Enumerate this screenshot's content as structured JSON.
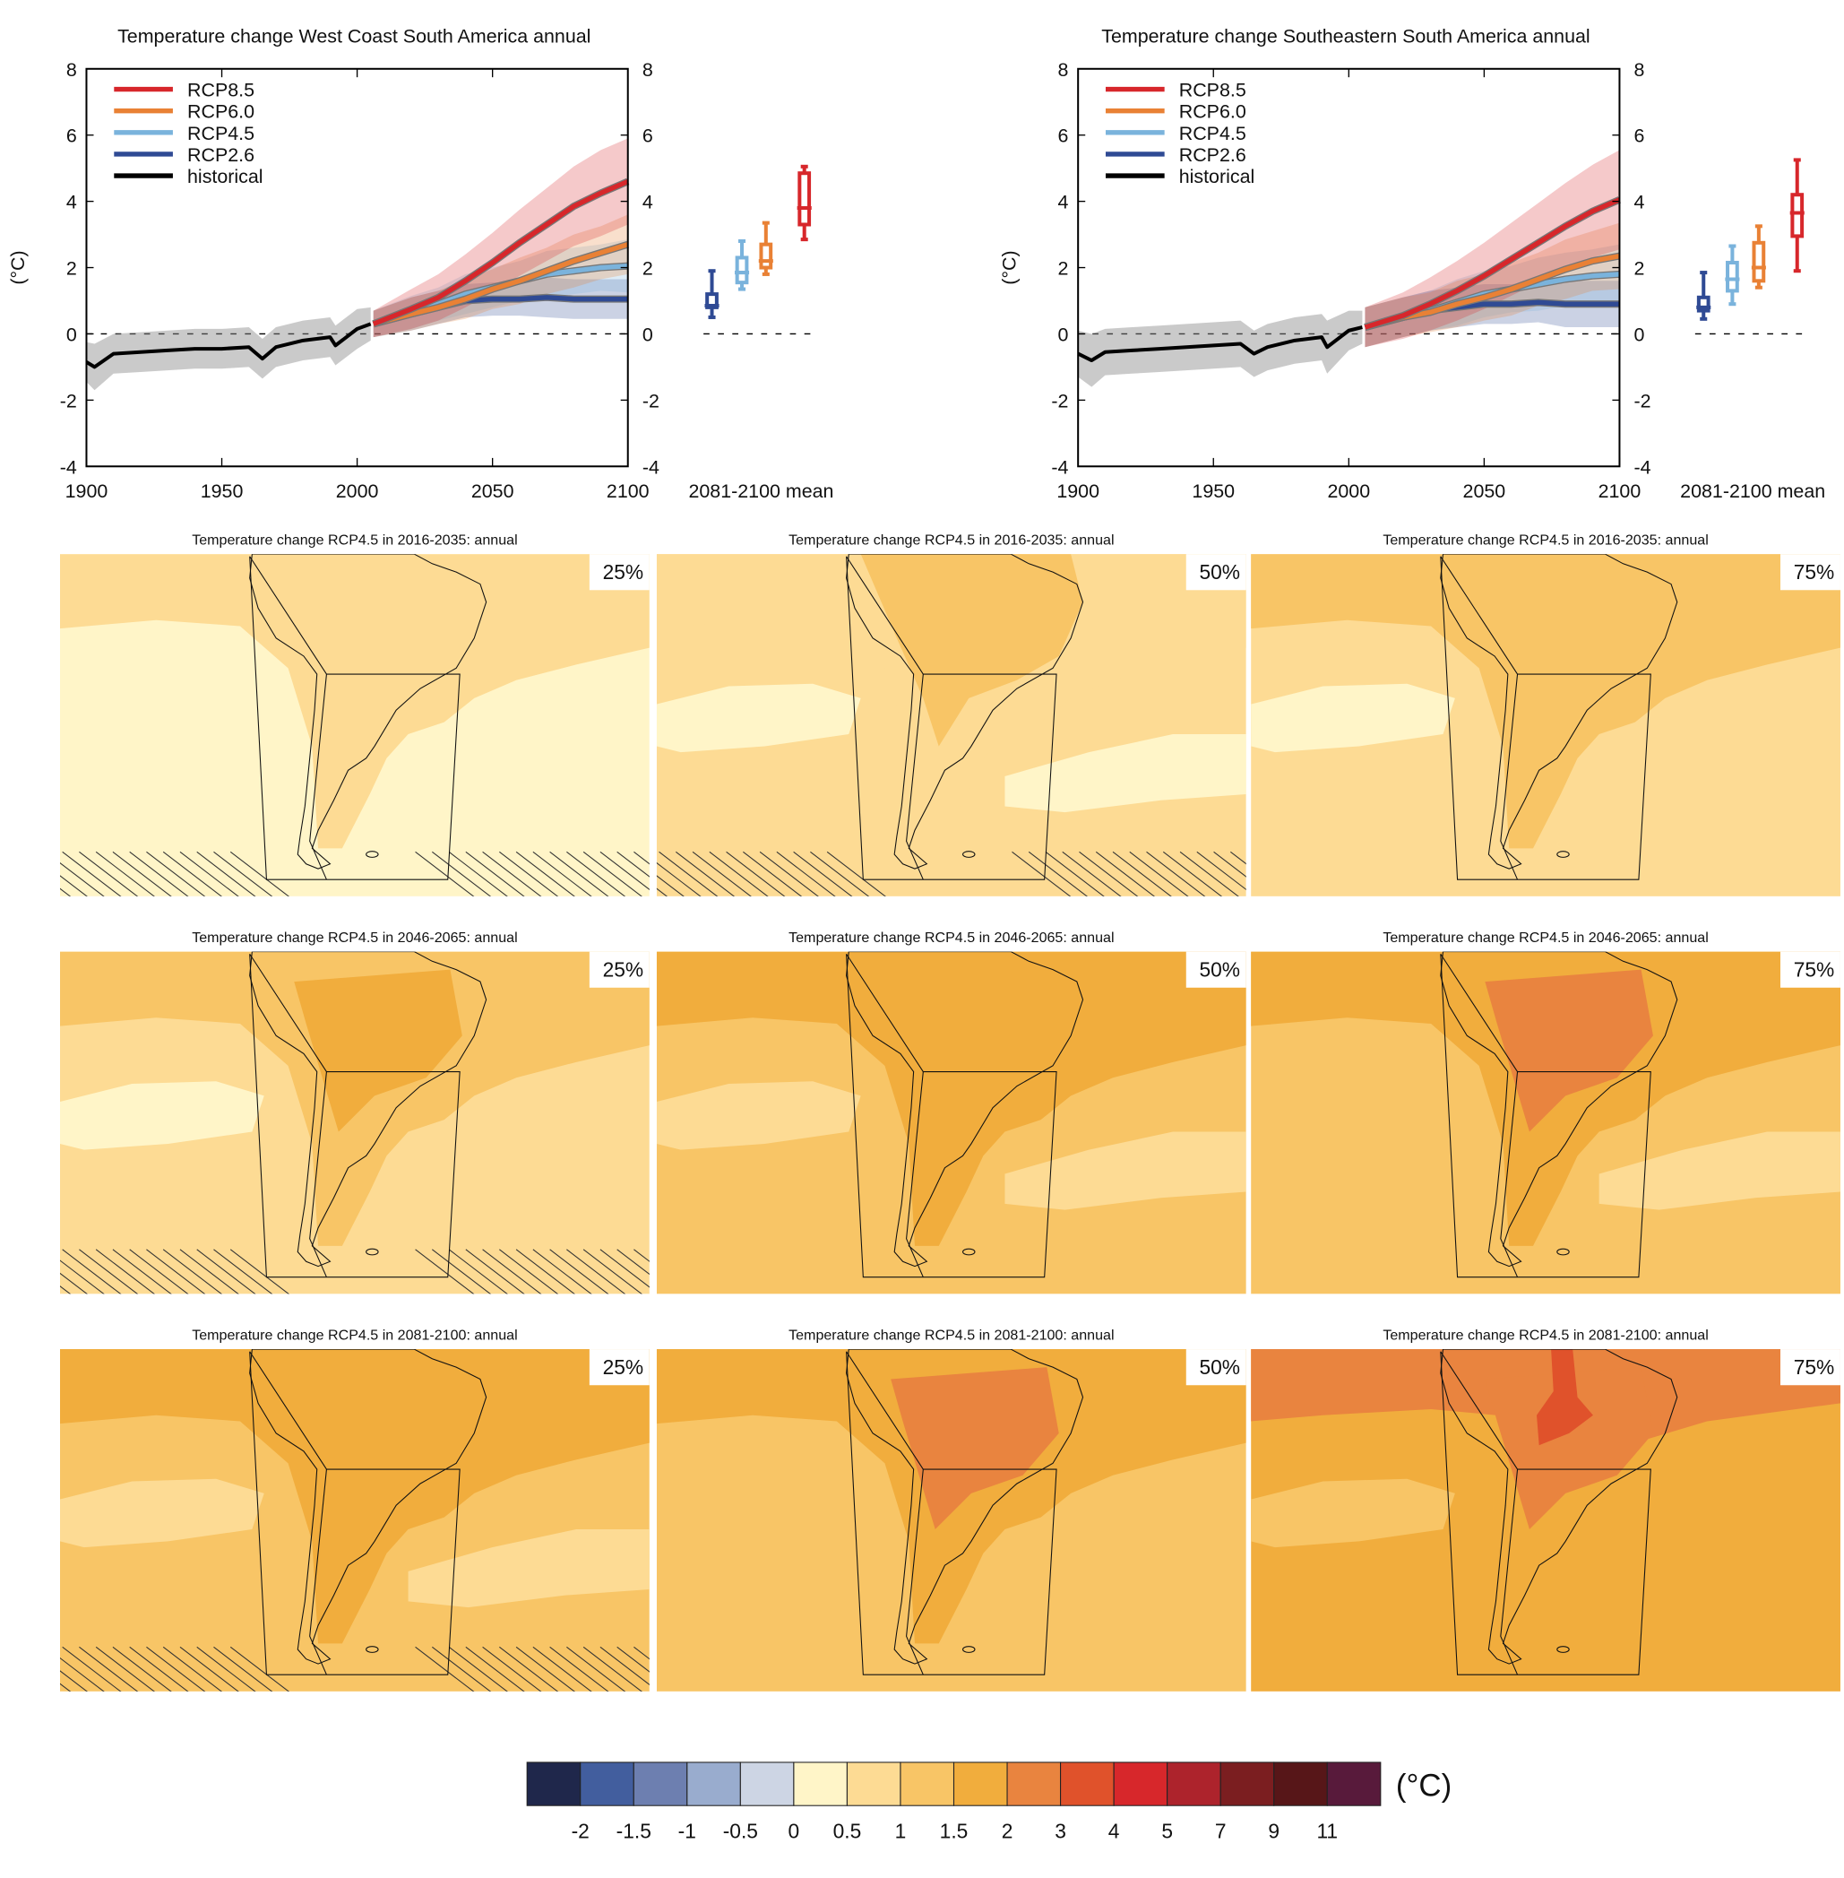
{
  "chart_data": {
    "timeseries": [
      {
        "type": "line",
        "title": "Temperature change West Coast South America annual",
        "ylabel": "(°C)",
        "xlim": [
          1900,
          2100
        ],
        "ylim": [
          -4,
          8
        ],
        "xticks": [
          "1900",
          "1950",
          "2000",
          "2050",
          "2100"
        ],
        "yticks": [
          "-4",
          "-2",
          "0",
          "2",
          "4",
          "6",
          "8"
        ],
        "legend_placement": "top-left",
        "mean_label": "2081-2100 mean",
        "series": [
          {
            "name": "RCP8.5",
            "color": "#d7272b",
            "x": [
              2006,
              2020,
              2030,
              2040,
              2050,
              2060,
              2070,
              2080,
              2090,
              2100
            ],
            "values": [
              0.3,
              0.75,
              1.1,
              1.6,
              2.15,
              2.75,
              3.3,
              3.85,
              4.25,
              4.6
            ],
            "spread": [
              0.4,
              0.6,
              0.7,
              0.8,
              0.9,
              1.0,
              1.1,
              1.2,
              1.3,
              1.3
            ]
          },
          {
            "name": "RCP6.0",
            "color": "#e98135",
            "x": [
              2006,
              2020,
              2030,
              2040,
              2050,
              2060,
              2070,
              2080,
              2090,
              2100
            ],
            "values": [
              0.3,
              0.6,
              0.8,
              1.05,
              1.35,
              1.6,
              1.9,
              2.2,
              2.45,
              2.7
            ],
            "spread": [
              0.4,
              0.5,
              0.5,
              0.6,
              0.6,
              0.7,
              0.7,
              0.8,
              0.8,
              0.9
            ]
          },
          {
            "name": "RCP4.5",
            "color": "#7ab3dc",
            "x": [
              2006,
              2020,
              2030,
              2040,
              2050,
              2060,
              2070,
              2080,
              2090,
              2100
            ],
            "values": [
              0.3,
              0.65,
              0.9,
              1.2,
              1.4,
              1.6,
              1.8,
              1.9,
              2.0,
              2.05
            ],
            "spread": [
              0.4,
              0.5,
              0.5,
              0.6,
              0.6,
              0.6,
              0.7,
              0.7,
              0.7,
              0.8
            ]
          },
          {
            "name": "RCP2.6",
            "color": "#2f4a94",
            "x": [
              2006,
              2020,
              2030,
              2040,
              2050,
              2060,
              2070,
              2080,
              2090,
              2100
            ],
            "values": [
              0.3,
              0.6,
              0.8,
              1.0,
              1.05,
              1.05,
              1.1,
              1.05,
              1.05,
              1.05
            ],
            "spread": [
              0.4,
              0.5,
              0.5,
              0.5,
              0.5,
              0.5,
              0.6,
              0.6,
              0.6,
              0.6
            ]
          },
          {
            "name": "historical",
            "color": "#000000",
            "x": [
              1900,
              1903,
              1910,
              1920,
              1930,
              1940,
              1950,
              1960,
              1965,
              1970,
              1980,
              1990,
              1992,
              2000,
              2005
            ],
            "values": [
              -0.85,
              -1.0,
              -0.6,
              -0.55,
              -0.5,
              -0.45,
              -0.45,
              -0.4,
              -0.75,
              -0.4,
              -0.2,
              -0.1,
              -0.35,
              0.15,
              0.3
            ],
            "spread": [
              0.6,
              0.7,
              0.6,
              0.6,
              0.6,
              0.6,
              0.6,
              0.6,
              0.6,
              0.6,
              0.6,
              0.6,
              0.6,
              0.6,
              0.5
            ]
          }
        ],
        "boxplots_2081_2100": [
          {
            "name": "RCP2.6",
            "color": "#2f4a94",
            "min": 0.5,
            "q1": 0.8,
            "median": 0.85,
            "q3": 1.2,
            "max": 1.9
          },
          {
            "name": "RCP4.5",
            "color": "#7ab3dc",
            "min": 1.35,
            "q1": 1.55,
            "median": 1.85,
            "q3": 2.3,
            "max": 2.8
          },
          {
            "name": "RCP6.0",
            "color": "#e98135",
            "min": 1.8,
            "q1": 2.0,
            "median": 2.2,
            "q3": 2.7,
            "max": 3.35
          },
          {
            "name": "RCP8.5",
            "color": "#d7272b",
            "min": 2.85,
            "q1": 3.3,
            "median": 3.8,
            "q3": 4.85,
            "max": 5.05
          }
        ]
      },
      {
        "type": "line",
        "title": "Temperature change Southeastern South America annual",
        "ylabel": "(°C)",
        "xlim": [
          1900,
          2100
        ],
        "ylim": [
          -4,
          8
        ],
        "xticks": [
          "1900",
          "1950",
          "2000",
          "2050",
          "2100"
        ],
        "yticks": [
          "-4",
          "-2",
          "0",
          "2",
          "4",
          "6",
          "8"
        ],
        "legend_placement": "top-left",
        "mean_label": "2081-2100 mean",
        "series": [
          {
            "name": "RCP8.5",
            "color": "#d7272b",
            "x": [
              2006,
              2020,
              2030,
              2040,
              2050,
              2060,
              2070,
              2080,
              2090,
              2100
            ],
            "values": [
              0.2,
              0.55,
              0.9,
              1.3,
              1.75,
              2.25,
              2.75,
              3.25,
              3.7,
              4.05
            ],
            "spread": [
              0.6,
              0.7,
              0.8,
              0.9,
              1.0,
              1.1,
              1.2,
              1.3,
              1.4,
              1.5
            ]
          },
          {
            "name": "RCP6.0",
            "color": "#e98135",
            "x": [
              2006,
              2020,
              2030,
              2040,
              2050,
              2060,
              2070,
              2080,
              2090,
              2100
            ],
            "values": [
              0.2,
              0.5,
              0.65,
              0.9,
              1.1,
              1.35,
              1.65,
              1.95,
              2.2,
              2.35
            ],
            "spread": [
              0.6,
              0.6,
              0.6,
              0.7,
              0.7,
              0.8,
              0.8,
              0.9,
              0.9,
              1.0
            ]
          },
          {
            "name": "RCP4.5",
            "color": "#7ab3dc",
            "x": [
              2006,
              2020,
              2030,
              2040,
              2050,
              2060,
              2070,
              2080,
              2090,
              2100
            ],
            "values": [
              0.2,
              0.5,
              0.7,
              0.95,
              1.2,
              1.35,
              1.5,
              1.65,
              1.75,
              1.8
            ],
            "spread": [
              0.6,
              0.6,
              0.6,
              0.7,
              0.7,
              0.7,
              0.8,
              0.8,
              0.8,
              0.9
            ]
          },
          {
            "name": "RCP2.6",
            "color": "#2f4a94",
            "x": [
              2006,
              2020,
              2030,
              2040,
              2050,
              2060,
              2070,
              2080,
              2090,
              2100
            ],
            "values": [
              0.2,
              0.5,
              0.7,
              0.8,
              0.9,
              0.9,
              0.95,
              0.9,
              0.9,
              0.9
            ],
            "spread": [
              0.6,
              0.6,
              0.6,
              0.6,
              0.6,
              0.6,
              0.6,
              0.7,
              0.7,
              0.7
            ]
          },
          {
            "name": "historical",
            "color": "#000000",
            "x": [
              1900,
              1905,
              1910,
              1920,
              1930,
              1940,
              1950,
              1960,
              1965,
              1970,
              1980,
              1990,
              1992,
              2000,
              2005
            ],
            "values": [
              -0.6,
              -0.8,
              -0.55,
              -0.5,
              -0.45,
              -0.4,
              -0.35,
              -0.3,
              -0.6,
              -0.4,
              -0.2,
              -0.1,
              -0.4,
              0.1,
              0.2
            ],
            "spread": [
              0.7,
              0.8,
              0.7,
              0.7,
              0.7,
              0.7,
              0.7,
              0.7,
              0.7,
              0.7,
              0.7,
              0.7,
              0.8,
              0.6,
              0.5
            ]
          }
        ],
        "boxplots_2081_2100": [
          {
            "name": "RCP2.6",
            "color": "#2f4a94",
            "min": 0.45,
            "q1": 0.7,
            "median": 0.8,
            "q3": 1.1,
            "max": 1.85
          },
          {
            "name": "RCP4.5",
            "color": "#7ab3dc",
            "min": 0.9,
            "q1": 1.3,
            "median": 1.65,
            "q3": 2.15,
            "max": 2.65
          },
          {
            "name": "RCP6.0",
            "color": "#e98135",
            "min": 1.4,
            "q1": 1.6,
            "median": 2.0,
            "q3": 2.75,
            "max": 3.25
          },
          {
            "name": "RCP8.5",
            "color": "#d7272b",
            "min": 1.9,
            "q1": 2.95,
            "median": 3.65,
            "q3": 4.2,
            "max": 5.25
          }
        ]
      }
    ],
    "maps": {
      "type": "heatmap",
      "panels": [
        {
          "title": "Temperature change RCP4.5 in 2016-2035: annual",
          "percentile": "25%",
          "background_bin": 5,
          "zones": [
            [
              "north",
              6
            ]
          ],
          "hatched": true
        },
        {
          "title": "Temperature change RCP4.5 in 2016-2035: annual",
          "percentile": "50%",
          "background_bin": 6,
          "zones": [
            [
              "paleBandW",
              5
            ],
            [
              "paleBandE",
              5
            ],
            [
              "north",
              6
            ],
            [
              "amazon",
              7
            ]
          ],
          "hatched": true
        },
        {
          "title": "Temperature change RCP4.5 in 2016-2035: annual",
          "percentile": "75%",
          "background_bin": 6,
          "zones": [
            [
              "paleBandW",
              5
            ],
            [
              "north",
              7
            ]
          ],
          "hatched": false
        },
        {
          "title": "Temperature change RCP4.5 in 2046-2065: annual",
          "percentile": "25%",
          "background_bin": 6,
          "zones": [
            [
              "paleBandW",
              5
            ],
            [
              "north",
              7
            ],
            [
              "core",
              8
            ]
          ],
          "hatched": true
        },
        {
          "title": "Temperature change RCP4.5 in 2046-2065: annual",
          "percentile": "50%",
          "background_bin": 7,
          "zones": [
            [
              "paleBandW",
              6
            ],
            [
              "paleBandE",
              6
            ],
            [
              "north",
              8
            ]
          ],
          "hatched": false
        },
        {
          "title": "Temperature change RCP4.5 in 2046-2065: annual",
          "percentile": "75%",
          "background_bin": 7,
          "zones": [
            [
              "paleBandE",
              6
            ],
            [
              "north",
              8
            ],
            [
              "core",
              9
            ]
          ],
          "hatched": false
        },
        {
          "title": "Temperature change RCP4.5 in 2081-2100: annual",
          "percentile": "25%",
          "background_bin": 7,
          "zones": [
            [
              "paleBandW",
              6
            ],
            [
              "paleBandE",
              6
            ],
            [
              "north",
              8
            ]
          ],
          "hatched": true
        },
        {
          "title": "Temperature change RCP4.5 in 2081-2100: annual",
          "percentile": "50%",
          "background_bin": 7,
          "zones": [
            [
              "north",
              8
            ],
            [
              "core",
              9
            ]
          ],
          "hatched": false
        },
        {
          "title": "Temperature change RCP4.5 in 2081-2100: annual",
          "percentile": "75%",
          "background_bin": 8,
          "zones": [
            [
              "paleBandW",
              7
            ],
            [
              "northBand",
              9
            ],
            [
              "core",
              9
            ],
            [
              "spot",
              10
            ]
          ],
          "hatched": false
        }
      ]
    },
    "colorbar": {
      "unit": "(°C)",
      "colors": [
        "#1f274b",
        "#425e9e",
        "#6d7fb0",
        "#99acce",
        "#cdd5e4",
        "#fff5c8",
        "#fddb94",
        "#f8c566",
        "#f1ad3d",
        "#e9843f",
        "#e0522b",
        "#d7272b",
        "#ad232c",
        "#7b1e20",
        "#571618",
        "#581a3b"
      ],
      "labels": [
        "-2",
        "-1.5",
        "-1",
        "-0.5",
        "0",
        "0.5",
        "1",
        "1.5",
        "2",
        "3",
        "4",
        "5",
        "7",
        "9",
        "11"
      ]
    }
  }
}
